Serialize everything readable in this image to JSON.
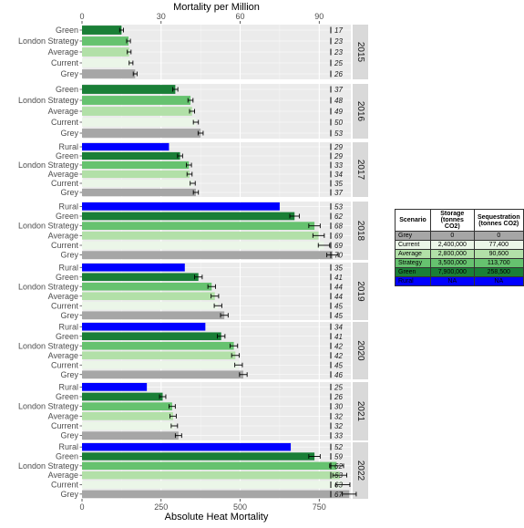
{
  "chart_data": {
    "type": "bar",
    "orientation": "horizontal",
    "x_title_bottom": "Absolute Heat Mortality",
    "x_title_top": "Mortality per Million",
    "bottom_ticks": [
      "0",
      "250",
      "500",
      "750"
    ],
    "top_ticks": [
      "0",
      "30",
      "60",
      "90"
    ],
    "xlim": [
      0,
      850
    ],
    "grid": true,
    "colors": {
      "Rural": "#0000ff",
      "Green": "#1a7f37",
      "London Strategy": "#66c26f",
      "Average": "#b2e0a8",
      "Current": "#ebf6e8",
      "Grey": "#a6a6a6"
    },
    "panels": [
      {
        "year": "2015",
        "scenarios": [
          "Green",
          "London Strategy",
          "Average",
          "Current",
          "Grey"
        ],
        "values": [
          125,
          147,
          149,
          155,
          168
        ],
        "errors": [
          6,
          6,
          6,
          6,
          6
        ],
        "per_million": [
          "17",
          "23",
          "23",
          "25",
          "26"
        ]
      },
      {
        "year": "2016",
        "scenarios": [
          "Green",
          "London Strategy",
          "Average",
          "Current",
          "Grey"
        ],
        "values": [
          295,
          343,
          348,
          360,
          375
        ],
        "errors": [
          8,
          8,
          8,
          8,
          8
        ],
        "per_million": [
          "37",
          "48",
          "49",
          "50",
          "53"
        ]
      },
      {
        "year": "2017",
        "scenarios": [
          "Rural",
          "Green",
          "London Strategy",
          "Average",
          "Current",
          "Grey"
        ],
        "values": [
          275,
          310,
          338,
          340,
          350,
          360
        ],
        "errors": [
          0,
          8,
          8,
          8,
          8,
          8
        ],
        "per_million": [
          "29",
          "29",
          "33",
          "34",
          "35",
          "37"
        ]
      },
      {
        "year": "2018",
        "scenarios": [
          "Rural",
          "Green",
          "London Strategy",
          "Average",
          "Current",
          "Grey"
        ],
        "values": [
          625,
          672,
          735,
          748,
          765,
          792
        ],
        "errors": [
          0,
          15,
          18,
          18,
          18,
          18
        ],
        "per_million": [
          "53",
          "62",
          "68",
          "69",
          "69",
          "70"
        ]
      },
      {
        "year": "2019",
        "scenarios": [
          "Rural",
          "Green",
          "London Strategy",
          "Average",
          "Current",
          "Grey"
        ],
        "values": [
          325,
          368,
          410,
          420,
          430,
          450
        ],
        "errors": [
          0,
          12,
          12,
          12,
          12,
          12
        ],
        "per_million": [
          "35",
          "41",
          "44",
          "44",
          "45",
          "45"
        ]
      },
      {
        "year": "2020",
        "scenarios": [
          "Rural",
          "Green",
          "London Strategy",
          "Average",
          "Current",
          "Grey"
        ],
        "values": [
          390,
          440,
          480,
          485,
          495,
          510
        ],
        "errors": [
          0,
          12,
          12,
          12,
          12,
          12
        ],
        "per_million": [
          "34",
          "41",
          "42",
          "42",
          "45",
          "46"
        ]
      },
      {
        "year": "2021",
        "scenarios": [
          "Rural",
          "Green",
          "London Strategy",
          "Average",
          "Current",
          "Grey"
        ],
        "values": [
          205,
          255,
          285,
          288,
          292,
          305
        ],
        "errors": [
          0,
          10,
          10,
          10,
          10,
          10
        ],
        "per_million": [
          "25",
          "26",
          "30",
          "32",
          "32",
          "33"
        ]
      },
      {
        "year": "2022",
        "scenarios": [
          "Rural",
          "Green",
          "London Strategy",
          "Average",
          "Current",
          "Grey"
        ],
        "values": [
          660,
          735,
          805,
          815,
          825,
          845
        ],
        "errors": [
          0,
          18,
          22,
          22,
          22,
          22
        ],
        "per_million": [
          "52",
          "59",
          "62",
          "63",
          "63",
          "67"
        ]
      }
    ]
  },
  "legend_table": {
    "headers": [
      "Scenario",
      "Storage\n(tonnes CO2)",
      "Sequestration\n(tonnes CO2)"
    ],
    "rows": [
      {
        "scenario": "Grey",
        "storage": "0",
        "sequestration": "0",
        "bg": "#a6a6a6",
        "fg": "#000000"
      },
      {
        "scenario": "Current",
        "storage": "2,400,000",
        "sequestration": "77,400",
        "bg": "#ebf6e8",
        "fg": "#000000"
      },
      {
        "scenario": "Average",
        "storage": "2,800,000",
        "sequestration": "90,600",
        "bg": "#b2e0a8",
        "fg": "#000000"
      },
      {
        "scenario": "Strategy",
        "storage": "3,500,000",
        "sequestration": "113,700",
        "bg": "#66c26f",
        "fg": "#000000"
      },
      {
        "scenario": "Green",
        "storage": "7,900,000",
        "sequestration": "258,500",
        "bg": "#1a7f37",
        "fg": "#000000"
      },
      {
        "scenario": "Rural",
        "storage": "NA",
        "sequestration": "NA",
        "bg": "#0000ff",
        "fg": "#000000"
      }
    ]
  }
}
